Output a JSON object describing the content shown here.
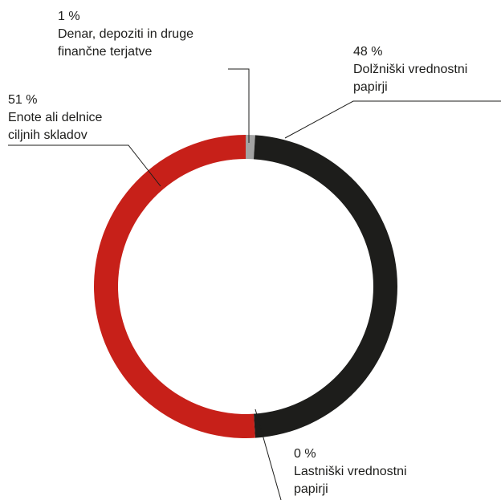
{
  "chart_data": {
    "type": "pie",
    "style": "donut",
    "segments": [
      {
        "pct_label": "1 %",
        "value": 1,
        "name": "Denar, depoziti in druge\nfinančne terjatve",
        "color": "#a3a3a3"
      },
      {
        "pct_label": "48 %",
        "value": 48,
        "name": "Dolžniški vrednostni\npapirji",
        "color": "#1d1d1b"
      },
      {
        "pct_label": "0 %",
        "value": 0,
        "name": "Lastniški vrednostni\npapirji",
        "color": "#1d1d1b"
      },
      {
        "pct_label": "51 %",
        "value": 51,
        "name": "Enote ali delnice\nciljnih skladov",
        "color": "#c72019"
      }
    ]
  }
}
